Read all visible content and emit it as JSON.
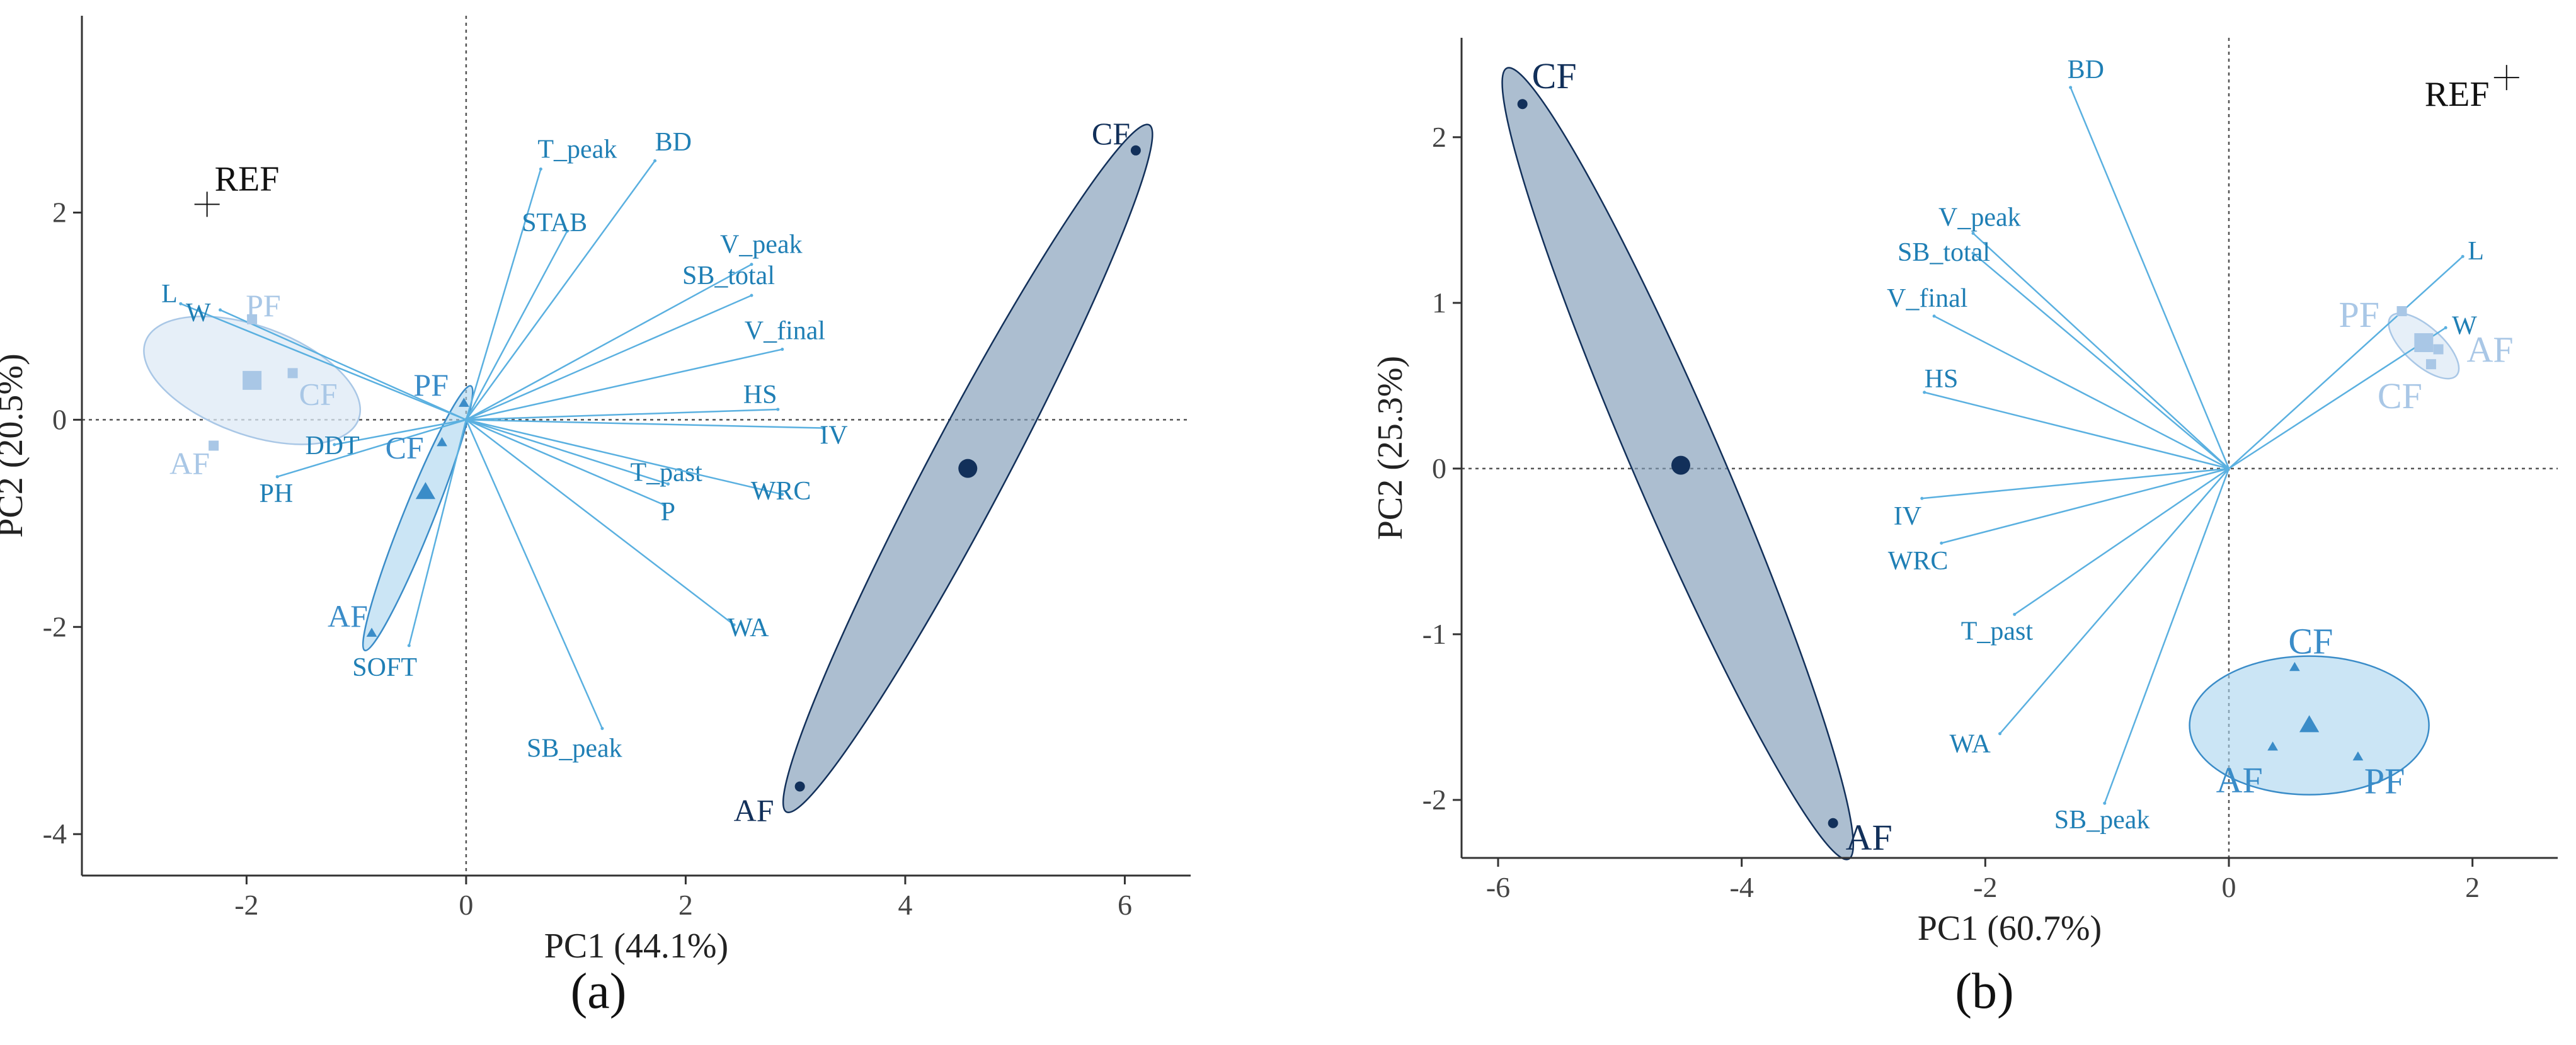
{
  "panel_labels": [
    "(a)",
    "(b)"
  ],
  "colors": {
    "vector": "#5ab0e0",
    "var_text": "#1f7fb5",
    "dark": "#12305a",
    "dark_fill": "#7f9bb7",
    "mid": "#3a8cc8",
    "mid_fill": "#a9d3ee",
    "light": "#a9c7e6",
    "light_fill": "#dde9f6",
    "ref": "#111111"
  },
  "chart_data": [
    {
      "type": "scatter",
      "subtype": "pca-biplot",
      "title": "",
      "xlabel": "PC1 (44.1%)",
      "ylabel": "PC2 (20.5%)",
      "xlim": [
        -3.5,
        6.6
      ],
      "ylim": [
        -4.4,
        3.9
      ],
      "xticks": [
        -2,
        0,
        2,
        4,
        6
      ],
      "yticks": [
        -4,
        -2,
        0,
        2
      ],
      "grid": false,
      "variables": [
        {
          "name": "T_peak",
          "x": 0.68,
          "y": 2.42
        },
        {
          "name": "BD",
          "x": 1.72,
          "y": 2.5
        },
        {
          "name": "STAB",
          "x": 0.92,
          "y": 1.82
        },
        {
          "name": "V_peak",
          "x": 2.6,
          "y": 1.5
        },
        {
          "name": "SB_total",
          "x": 2.6,
          "y": 1.2
        },
        {
          "name": "V_final",
          "x": 2.88,
          "y": 0.68
        },
        {
          "name": "HS",
          "x": 2.84,
          "y": 0.1
        },
        {
          "name": "IV",
          "x": 3.25,
          "y": -0.08
        },
        {
          "name": "T_past",
          "x": 1.84,
          "y": -0.62
        },
        {
          "name": "P",
          "x": 1.8,
          "y": -0.82
        },
        {
          "name": "WRC",
          "x": 2.88,
          "y": -0.72
        },
        {
          "name": "WA",
          "x": 2.44,
          "y": -1.98
        },
        {
          "name": "SB_peak",
          "x": 1.24,
          "y": -2.98
        },
        {
          "name": "L",
          "x": -2.6,
          "y": 1.12
        },
        {
          "name": "W",
          "x": -2.24,
          "y": 1.06
        },
        {
          "name": "DDT",
          "x": -1.2,
          "y": -0.24
        },
        {
          "name": "PH",
          "x": -1.72,
          "y": -0.55
        },
        {
          "name": "SOFT",
          "x": -0.52,
          "y": -2.18
        }
      ],
      "groups": [
        {
          "style": "dark",
          "marker": "circle",
          "centroid": [
            4.57,
            -0.47
          ],
          "points": [
            {
              "label": "CF",
              "x": 6.1,
              "y": 2.6
            },
            {
              "label": "AF",
              "x": 3.04,
              "y": -3.54
            }
          ]
        },
        {
          "style": "mid",
          "marker": "triangle",
          "centroid": [
            -0.37,
            -0.7
          ],
          "points": [
            {
              "label": "PF",
              "x": -0.02,
              "y": 0.16
            },
            {
              "label": "CF",
              "x": -0.22,
              "y": -0.22
            },
            {
              "label": "AF",
              "x": -0.86,
              "y": -2.06
            }
          ]
        },
        {
          "style": "light",
          "marker": "square",
          "centroid": [
            -1.95,
            0.38
          ],
          "points": [
            {
              "label": "PF",
              "x": -1.95,
              "y": 0.97
            },
            {
              "label": "CF",
              "x": -1.58,
              "y": 0.45
            },
            {
              "label": "AF",
              "x": -2.3,
              "y": -0.25
            }
          ]
        }
      ],
      "reference": {
        "label": "REF",
        "x": -2.36,
        "y": 2.08
      }
    },
    {
      "type": "scatter",
      "subtype": "pca-biplot",
      "title": "",
      "xlabel": "PC1 (60.7%)",
      "ylabel": "PC2 (25.3%)",
      "xlim": [
        -6.3,
        2.7
      ],
      "ylim": [
        -2.35,
        2.6
      ],
      "xticks": [
        -6,
        -4,
        -2,
        0,
        2
      ],
      "yticks": [
        -2,
        -1,
        0,
        1,
        2
      ],
      "grid": false,
      "variables": [
        {
          "name": "BD",
          "x": -1.3,
          "y": 2.3
        },
        {
          "name": "V_peak",
          "x": -2.1,
          "y": 1.42
        },
        {
          "name": "SB_total",
          "x": -2.1,
          "y": 1.3
        },
        {
          "name": "V_final",
          "x": -2.42,
          "y": 0.92
        },
        {
          "name": "HS",
          "x": -2.5,
          "y": 0.46
        },
        {
          "name": "IV",
          "x": -2.52,
          "y": -0.18
        },
        {
          "name": "WRC",
          "x": -2.36,
          "y": -0.45
        },
        {
          "name": "T_past",
          "x": -1.76,
          "y": -0.88
        },
        {
          "name": "WA",
          "x": -1.88,
          "y": -1.6
        },
        {
          "name": "SB_peak",
          "x": -1.02,
          "y": -2.02
        },
        {
          "name": "L",
          "x": 1.92,
          "y": 1.28
        },
        {
          "name": "W",
          "x": 1.78,
          "y": 0.85
        }
      ],
      "groups": [
        {
          "style": "dark",
          "marker": "circle",
          "centroid": [
            -4.5,
            0.02
          ],
          "points": [
            {
              "label": "CF",
              "x": -5.8,
              "y": 2.2
            },
            {
              "label": "AF",
              "x": -3.25,
              "y": -2.14
            }
          ]
        },
        {
          "style": "mid",
          "marker": "triangle",
          "centroid": [
            0.66,
            -1.55
          ],
          "points": [
            {
              "label": "CF",
              "x": 0.54,
              "y": -1.2
            },
            {
              "label": "AF",
              "x": 0.36,
              "y": -1.68
            },
            {
              "label": "PF",
              "x": 1.06,
              "y": -1.74
            }
          ]
        },
        {
          "style": "light",
          "marker": "square",
          "centroid": [
            1.6,
            0.76
          ],
          "points": [
            {
              "label": "PF",
              "x": 1.42,
              "y": 0.95
            },
            {
              "label": "AF",
              "x": 1.72,
              "y": 0.72
            },
            {
              "label": "CF",
              "x": 1.66,
              "y": 0.63
            }
          ]
        }
      ],
      "reference": {
        "label": "REF",
        "x": 2.28,
        "y": 2.36
      }
    }
  ]
}
